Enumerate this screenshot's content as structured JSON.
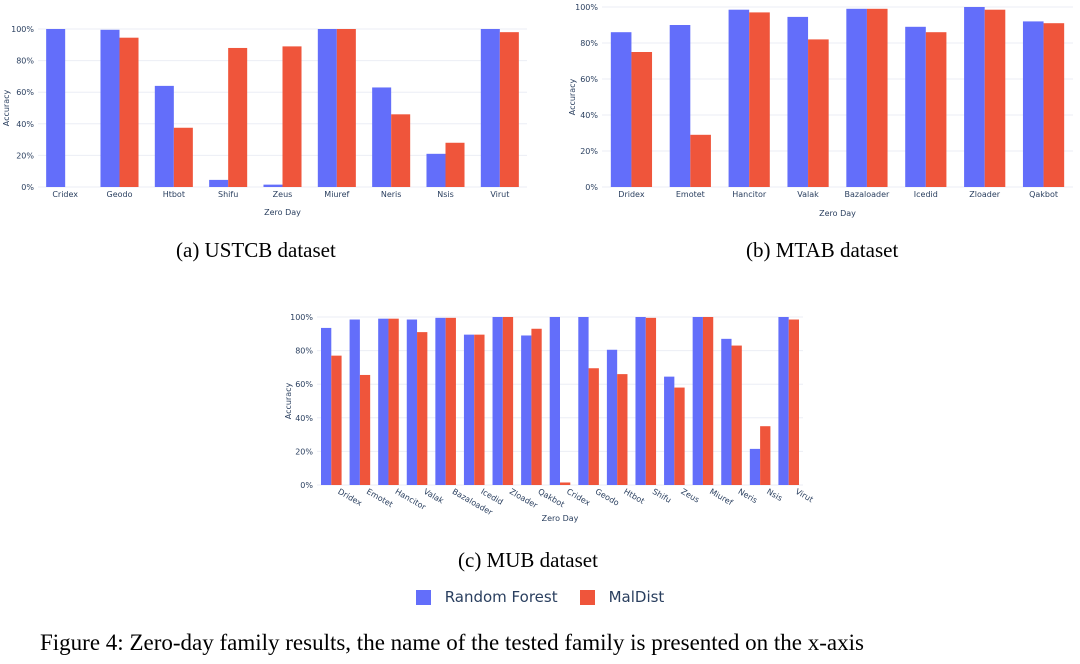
{
  "colors": {
    "random_forest": "#636efa",
    "maldist": "#ef553b",
    "grid": "#ebeef5",
    "text": "#2a3f5f"
  },
  "captions": {
    "a": "(a) USTCB dataset",
    "b": "(b) MTAB dataset",
    "c": "(c) MUB dataset"
  },
  "legend": {
    "random_forest": "Random Forest",
    "maldist": "MalDist"
  },
  "figure_caption": "Figure 4: Zero-day family results, the name of the tested family is presented on the x-axis",
  "chart_data": [
    {
      "id": "a",
      "type": "bar",
      "xlabel": "Zero Day",
      "ylabel": "Accuracy",
      "yticks": [
        "0%",
        "20%",
        "40%",
        "60%",
        "80%",
        "100%"
      ],
      "ylim": [
        0,
        100
      ],
      "grid": true,
      "categories": [
        "Cridex",
        "Geodo",
        "Htbot",
        "Shifu",
        "Zeus",
        "Miuref",
        "Neris",
        "Nsis",
        "Virut"
      ],
      "series": [
        {
          "name": "Random Forest",
          "values": [
            100,
            99.5,
            64,
            4.5,
            1.5,
            100,
            63,
            21,
            100
          ]
        },
        {
          "name": "MalDist",
          "values": [
            0,
            94.5,
            37.5,
            88,
            89,
            100,
            46,
            28,
            98
          ]
        }
      ]
    },
    {
      "id": "b",
      "type": "bar",
      "xlabel": "Zero Day",
      "ylabel": "Accuracy",
      "yticks": [
        "0%",
        "20%",
        "40%",
        "60%",
        "80%",
        "100%"
      ],
      "ylim": [
        0,
        100
      ],
      "grid": true,
      "categories": [
        "Dridex",
        "Emotet",
        "Hancitor",
        "Valak",
        "Bazaloader",
        "Icedid",
        "Zloader",
        "Qakbot"
      ],
      "series": [
        {
          "name": "Random Forest",
          "values": [
            86,
            90,
            98.5,
            94.5,
            99,
            89,
            100,
            92
          ]
        },
        {
          "name": "MalDist",
          "values": [
            75,
            29,
            97,
            82,
            99,
            86,
            98.5,
            91
          ]
        }
      ]
    },
    {
      "id": "c",
      "type": "bar",
      "xlabel": "Zero Day",
      "ylabel": "Accuracy",
      "yticks": [
        "0%",
        "20%",
        "40%",
        "60%",
        "80%",
        "100%"
      ],
      "ylim": [
        0,
        100
      ],
      "grid": true,
      "categories": [
        "Dridex",
        "Emotet",
        "Hancitor",
        "Valak",
        "Bazaloader",
        "Icedid",
        "Zloader",
        "Qakbot",
        "Cridex",
        "Geodo",
        "Htbot",
        "Shifu",
        "Zeus",
        "Miuref",
        "Neris",
        "Nsis",
        "Virut"
      ],
      "series": [
        {
          "name": "Random Forest",
          "values": [
            93.5,
            98.5,
            99,
            98.5,
            99.5,
            89.5,
            100,
            89,
            100,
            100,
            80.5,
            100,
            64.5,
            100,
            87,
            21.5,
            100
          ]
        },
        {
          "name": "MalDist",
          "values": [
            77,
            65.5,
            99,
            91,
            99.5,
            89.5,
            100,
            93,
            1.5,
            69.5,
            66,
            99.5,
            58,
            100,
            83,
            35,
            98.5
          ]
        }
      ]
    }
  ]
}
